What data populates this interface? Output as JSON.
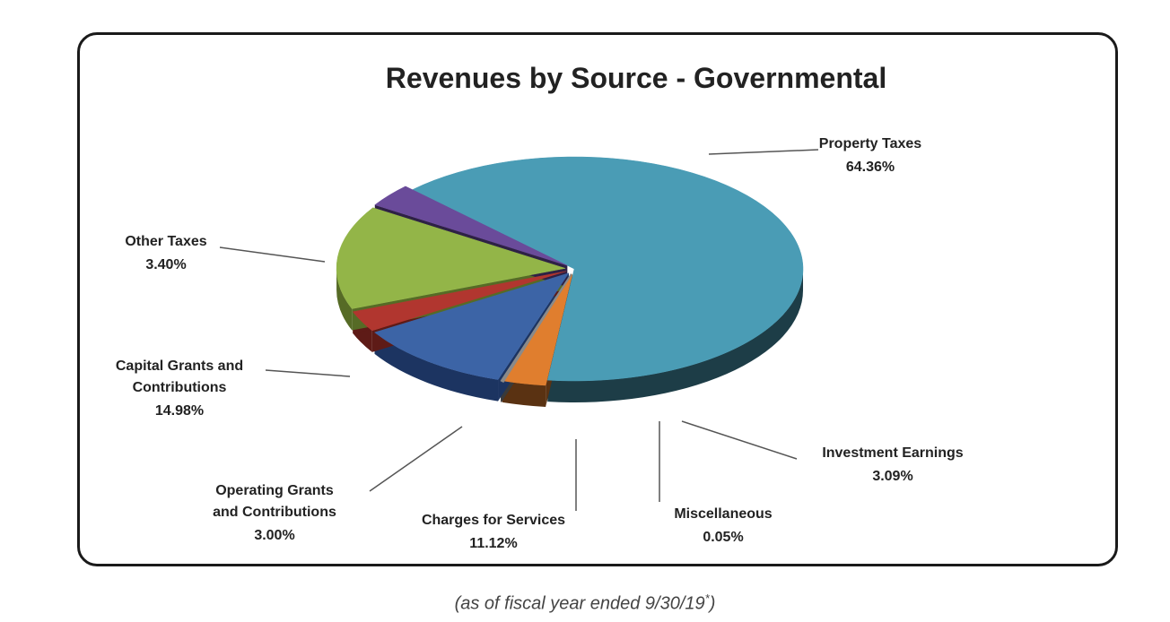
{
  "chart_data": {
    "type": "pie",
    "title": "Revenues by  Source - Governmental",
    "slices": [
      {
        "label": "Property Taxes",
        "percent": 64.36,
        "value_text": "64.36%",
        "color": "#4a9cb5",
        "side": "#1d3d47"
      },
      {
        "label": "Investment Earnings",
        "percent": 3.09,
        "value_text": "3.09%",
        "color": "#e07e2e",
        "side": "#5a3212"
      },
      {
        "label": "Miscellaneous",
        "percent": 0.05,
        "value_text": "0.05%",
        "color": "#8a8a8a",
        "side": "#3a3a3a"
      },
      {
        "label": "Charges for Services",
        "percent": 11.12,
        "value_text": "11.12%",
        "color": "#3c64a6",
        "side": "#1c3461"
      },
      {
        "label": "Operating Grants and Contributions",
        "percent": 3.0,
        "value_text": "3.00%",
        "color": "#b1362f",
        "side": "#5e1b17"
      },
      {
        "label": "Capital Grants and Contributions",
        "percent": 14.98,
        "value_text": "14.98%",
        "color": "#93b548",
        "side": "#566b26"
      },
      {
        "label": "Other Taxes",
        "percent": 3.4,
        "value_text": "3.40%",
        "color": "#6a4b9a",
        "side": "#2e2145"
      }
    ],
    "legend": "none"
  },
  "caption": {
    "text": "(as of fiscal year ended 9/30/19",
    "sup": "*",
    "close": ")"
  }
}
